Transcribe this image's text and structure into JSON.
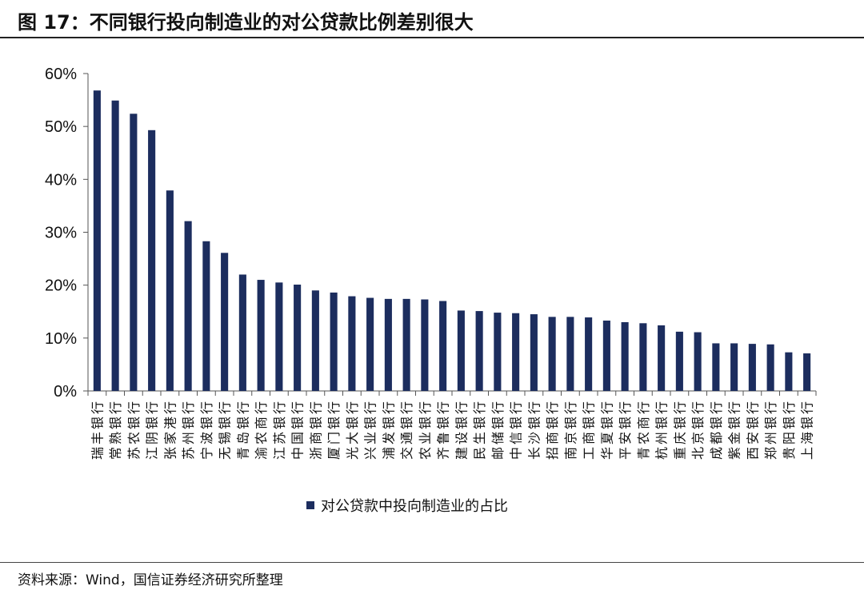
{
  "title": "图 17：不同银行投向制造业的对公贷款比例差别很大",
  "source": "资料来源：Wind，国信证券经济研究所整理",
  "colors": {
    "bar": "#1c2d5e",
    "axis": "#555555",
    "text": "#111111"
  },
  "chart_data": {
    "type": "bar",
    "categories": [
      "瑞丰银行",
      "常熟银行",
      "苏农银行",
      "江阴银行",
      "张家港行",
      "苏州银行",
      "宁波银行",
      "无锡银行",
      "青岛银行",
      "渝农商行",
      "江苏银行",
      "中国银行",
      "浙商银行",
      "厦门银行",
      "光大银行",
      "兴业银行",
      "浦发银行",
      "交通银行",
      "农业银行",
      "齐鲁银行",
      "建设银行",
      "民生银行",
      "邮储银行",
      "中信银行",
      "长沙银行",
      "招商银行",
      "南京银行",
      "工商银行",
      "华夏银行",
      "平安银行",
      "青农商行",
      "杭州银行",
      "重庆银行",
      "北京银行",
      "成都银行",
      "紫金银行",
      "西安银行",
      "郑州银行",
      "贵阳银行",
      "上海银行"
    ],
    "series": [
      {
        "name": "对公贷款中投向制造业的占比",
        "values": [
          56.8,
          54.9,
          52.4,
          49.3,
          37.9,
          32.1,
          28.3,
          26.1,
          22.0,
          21.0,
          20.5,
          20.1,
          19.0,
          18.6,
          17.9,
          17.6,
          17.4,
          17.4,
          17.3,
          17.0,
          15.2,
          15.1,
          14.8,
          14.7,
          14.5,
          14.0,
          14.0,
          13.9,
          13.3,
          13.0,
          12.8,
          12.4,
          11.2,
          11.1,
          9.0,
          9.0,
          8.9,
          8.8,
          7.3,
          7.1
        ]
      }
    ],
    "yticks": [
      "0%",
      "10%",
      "20%",
      "30%",
      "40%",
      "50%",
      "60%"
    ],
    "ylim": [
      0,
      60
    ],
    "xlabel": "",
    "ylabel": "",
    "grid": false,
    "legend": "bottom"
  }
}
